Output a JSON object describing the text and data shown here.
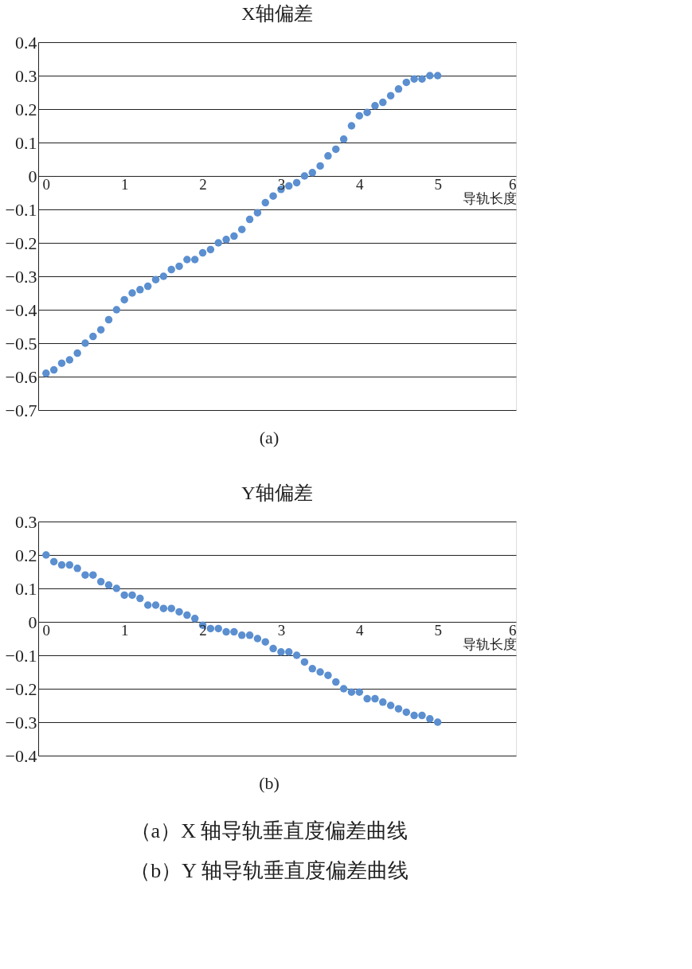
{
  "chart_data": [
    {
      "type": "scatter",
      "title": "X轴偏差",
      "xlabel": "导轨长度",
      "xlim": [
        -0.1,
        6
      ],
      "xticks": [
        0,
        1,
        2,
        3,
        4,
        5,
        6
      ],
      "ylim": [
        -0.7,
        0.4
      ],
      "yticks": [
        -0.7,
        -0.6,
        -0.5,
        -0.4,
        -0.3,
        -0.2,
        -0.1,
        0,
        0.1,
        0.2,
        0.3,
        0.4
      ],
      "grid": "y",
      "marker": "circle",
      "legend": false,
      "x": [
        0,
        0.1,
        0.2,
        0.3,
        0.4,
        0.5,
        0.6,
        0.7,
        0.8,
        0.9,
        1.0,
        1.1,
        1.2,
        1.3,
        1.4,
        1.5,
        1.6,
        1.7,
        1.8,
        1.9,
        2.0,
        2.1,
        2.2,
        2.3,
        2.4,
        2.5,
        2.6,
        2.7,
        2.8,
        2.9,
        3.0,
        3.1,
        3.2,
        3.3,
        3.4,
        3.5,
        3.6,
        3.7,
        3.8,
        3.9,
        4.0,
        4.1,
        4.2,
        4.3,
        4.4,
        4.5,
        4.6,
        4.7,
        4.8,
        4.9,
        5.0
      ],
      "series": [
        {
          "color": "#5b8fd0",
          "values": [
            -0.59,
            -0.58,
            -0.56,
            -0.55,
            -0.53,
            -0.5,
            -0.48,
            -0.46,
            -0.43,
            -0.4,
            -0.37,
            -0.35,
            -0.34,
            -0.33,
            -0.31,
            -0.3,
            -0.28,
            -0.27,
            -0.25,
            -0.25,
            -0.23,
            -0.22,
            -0.2,
            -0.19,
            -0.18,
            -0.16,
            -0.13,
            -0.11,
            -0.08,
            -0.06,
            -0.04,
            -0.03,
            -0.02,
            0.0,
            0.01,
            0.03,
            0.06,
            0.08,
            0.11,
            0.15,
            0.18,
            0.19,
            0.21,
            0.22,
            0.24,
            0.26,
            0.28,
            0.29,
            0.29,
            0.3,
            0.3
          ]
        }
      ],
      "annotations": [
        "(a)"
      ]
    },
    {
      "type": "scatter",
      "title": "Y轴偏差",
      "xlabel": "导轨长度",
      "xlim": [
        -0.1,
        6
      ],
      "xticks": [
        0,
        1,
        2,
        3,
        4,
        5,
        6
      ],
      "ylim": [
        -0.4,
        0.3
      ],
      "yticks": [
        -0.4,
        -0.3,
        -0.2,
        -0.1,
        0,
        0.1,
        0.2,
        0.3
      ],
      "grid": "y",
      "marker": "circle",
      "legend": false,
      "x": [
        0,
        0.1,
        0.2,
        0.3,
        0.4,
        0.5,
        0.6,
        0.7,
        0.8,
        0.9,
        1.0,
        1.1,
        1.2,
        1.3,
        1.4,
        1.5,
        1.6,
        1.7,
        1.8,
        1.9,
        2.0,
        2.1,
        2.2,
        2.3,
        2.4,
        2.5,
        2.6,
        2.7,
        2.8,
        2.9,
        3.0,
        3.1,
        3.2,
        3.3,
        3.4,
        3.5,
        3.6,
        3.7,
        3.8,
        3.9,
        4.0,
        4.1,
        4.2,
        4.3,
        4.4,
        4.5,
        4.6,
        4.7,
        4.8,
        4.9,
        5.0
      ],
      "series": [
        {
          "color": "#5b8fd0",
          "values": [
            0.2,
            0.18,
            0.17,
            0.17,
            0.16,
            0.14,
            0.14,
            0.12,
            0.11,
            0.1,
            0.08,
            0.08,
            0.07,
            0.05,
            0.05,
            0.04,
            0.04,
            0.03,
            0.02,
            0.01,
            -0.01,
            -0.02,
            -0.02,
            -0.03,
            -0.03,
            -0.04,
            -0.04,
            -0.05,
            -0.06,
            -0.08,
            -0.09,
            -0.09,
            -0.1,
            -0.12,
            -0.14,
            -0.15,
            -0.16,
            -0.18,
            -0.2,
            -0.21,
            -0.21,
            -0.23,
            -0.23,
            -0.24,
            -0.25,
            -0.26,
            -0.27,
            -0.28,
            -0.28,
            -0.29,
            -0.3
          ]
        }
      ],
      "annotations": [
        "(b)",
        "（a）X 轴导轨垂直度偏差曲线",
        "（b）Y 轴导轨垂直度偏差曲线"
      ]
    }
  ]
}
